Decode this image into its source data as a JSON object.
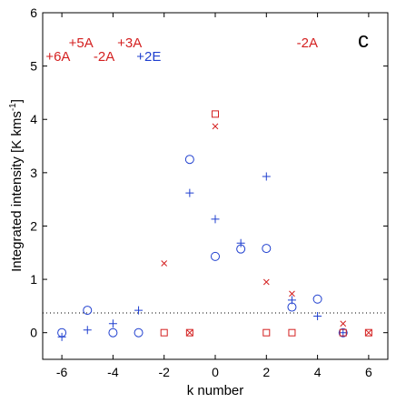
{
  "chart_data": {
    "type": "scatter",
    "panel_label": "c",
    "xlabel": "k number",
    "ylabel": "Integrated intensity [K kms",
    "ylabel_sup": "-1",
    "ylabel_close": "]",
    "xlim": [
      -6.75,
      6.75
    ],
    "ylim": [
      -0.5,
      6
    ],
    "x_ticks": [
      -6,
      -4,
      -2,
      0,
      2,
      4,
      6
    ],
    "y_ticks": [
      0,
      1,
      2,
      3,
      4,
      5,
      6
    ],
    "grid": false,
    "threshold_line": 0.37,
    "series": [
      {
        "marker": "circle",
        "color": "#1f3fcf",
        "points": [
          [
            -6,
            0.0
          ],
          [
            -5,
            0.42
          ],
          [
            -4,
            0.0
          ],
          [
            -3,
            0.0
          ],
          [
            -1,
            3.25
          ],
          [
            0,
            1.43
          ],
          [
            1,
            1.57
          ],
          [
            2,
            1.58
          ],
          [
            3,
            0.48
          ],
          [
            4,
            0.63
          ],
          [
            5,
            0.0
          ]
        ]
      },
      {
        "marker": "plus",
        "color": "#1f3fcf",
        "points": [
          [
            -6,
            -0.08
          ],
          [
            -5,
            0.05
          ],
          [
            -4,
            0.17
          ],
          [
            -3,
            0.42
          ],
          [
            -1,
            2.62
          ],
          [
            0,
            2.13
          ],
          [
            1,
            1.68
          ],
          [
            2,
            2.93
          ],
          [
            3,
            0.61
          ],
          [
            4,
            0.31
          ],
          [
            5,
            0.0
          ]
        ]
      },
      {
        "marker": "cross",
        "color": "#d42020",
        "points": [
          [
            -2,
            1.3
          ],
          [
            -1,
            0.0
          ],
          [
            0,
            3.87
          ],
          [
            2,
            0.95
          ],
          [
            3,
            0.73
          ],
          [
            5,
            0.17
          ],
          [
            6,
            0.0
          ]
        ]
      },
      {
        "marker": "square",
        "color": "#d42020",
        "points": [
          [
            -2,
            0.0
          ],
          [
            -1,
            0.0
          ],
          [
            0,
            4.1
          ],
          [
            2,
            0.0
          ],
          [
            3,
            0.0
          ],
          [
            5,
            0.0
          ],
          [
            6,
            0.0
          ]
        ]
      }
    ],
    "annotations": [
      {
        "text": "+6A",
        "x": -6.15,
        "y": 5.1,
        "color": "#d42020"
      },
      {
        "text": "+5A",
        "x": -5.25,
        "y": 5.35,
        "color": "#d42020"
      },
      {
        "text": "-2A",
        "x": -4.35,
        "y": 5.1,
        "color": "#d42020"
      },
      {
        "text": "+3A",
        "x": -3.35,
        "y": 5.35,
        "color": "#d42020"
      },
      {
        "text": "+2E",
        "x": -2.6,
        "y": 5.1,
        "color": "#1f3fcf"
      },
      {
        "text": "-2A",
        "x": 3.6,
        "y": 5.35,
        "color": "#d42020"
      }
    ]
  }
}
